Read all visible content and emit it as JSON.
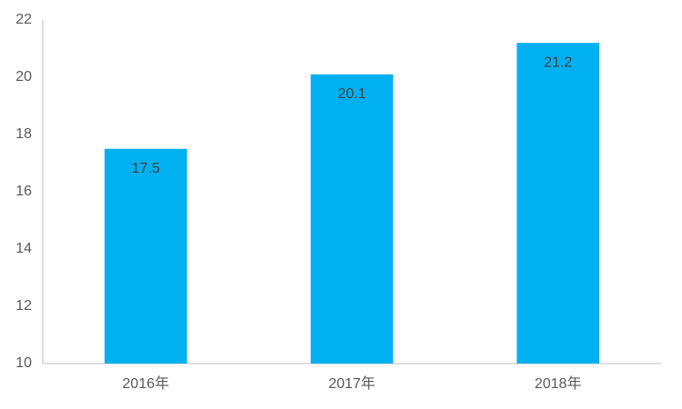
{
  "chart_data": {
    "type": "bar",
    "categories": [
      "2016年",
      "2017年",
      "2018年"
    ],
    "values": [
      17.5,
      20.1,
      21.2
    ],
    "color": "#00b0f0",
    "ylim": [
      10,
      22
    ],
    "yticks": [
      10,
      12,
      14,
      16,
      18,
      20,
      22
    ],
    "grid": false
  }
}
